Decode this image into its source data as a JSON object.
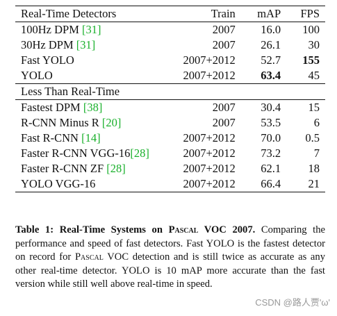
{
  "table": {
    "header": {
      "col_name": "Real-Time Detectors",
      "col_train": "Train",
      "col_map": "mAP",
      "col_fps": "FPS"
    },
    "realtime_rows": [
      {
        "name": "100Hz DPM ",
        "cite": "[31]",
        "train": "2007",
        "map": "16.0",
        "fps": "100"
      },
      {
        "name": "30Hz DPM ",
        "cite": "[31]",
        "train": "2007",
        "map": "26.1",
        "fps": "30"
      },
      {
        "name": "Fast YOLO",
        "cite": "",
        "train": "2007+2012",
        "map": "52.7",
        "fps": "155"
      },
      {
        "name": "YOLO",
        "cite": "",
        "train": "2007+2012",
        "map": "63.4",
        "fps": "45"
      }
    ],
    "section2_title": "Less Than Real-Time",
    "slow_rows": [
      {
        "name": "Fastest DPM ",
        "cite": "[38]",
        "train": "2007",
        "map": "30.4",
        "fps": "15"
      },
      {
        "name": "R-CNN Minus R ",
        "cite": "[20]",
        "train": "2007",
        "map": "53.5",
        "fps": "6"
      },
      {
        "name": "Fast R-CNN ",
        "cite": "[14]",
        "train": "2007+2012",
        "map": "70.0",
        "fps": "0.5"
      },
      {
        "name": "Faster R-CNN VGG-16",
        "cite": "[28]",
        "train": "2007+2012",
        "map": "73.2",
        "fps": "7"
      },
      {
        "name": "Faster R-CNN ZF ",
        "cite": "[28]",
        "train": "2007+2012",
        "map": "62.1",
        "fps": "18"
      },
      {
        "name": "YOLO VGG-16",
        "cite": "",
        "train": "2007+2012",
        "map": "66.4",
        "fps": "21"
      }
    ]
  },
  "caption": {
    "label": "Table 1:",
    "title_a": " Real-Time Systems on ",
    "title_sc": "Pascal",
    "title_b": " VOC 2007.",
    "text_a": " Comparing the performance and speed of fast detectors. Fast YOLO is the fastest detector on record for ",
    "text_sc": "Pascal",
    "text_b": " VOC detection and is still twice as accurate as any other real-time detector. YOLO is 10 mAP more accurate than the fast version while still well above real-time in speed."
  },
  "watermark": "CSDN @路人贾'ω'"
}
